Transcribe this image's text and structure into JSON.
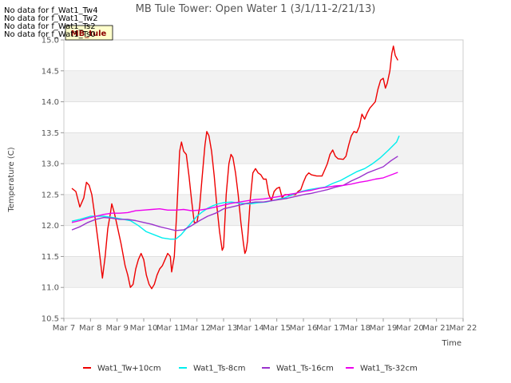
{
  "no_data_messages": [
    "No data for f_Wat1_Tw4",
    "No data for f_Wat1_Tw2",
    "No data for f_Wat1_Ts2",
    "No data for f_Wat1_Ts0"
  ],
  "site_label": "MB_tule",
  "colors": {
    "Wat1_Tw+10cm": "#ee0000",
    "Wat1_Ts-8cm": "#00eeee",
    "Wat1_Ts-16cm": "#9a32cd",
    "Wat1_Ts-32cm": "#ee00ee",
    "band": "#f2f2f2",
    "grid": "#dddddd"
  },
  "chart_data": {
    "type": "line",
    "title": "MB Tule Tower: Open Water 1 (3/1/11-2/21/13)",
    "xlabel": "Time",
    "ylabel": "Temperature (C)",
    "x_tick_labels": [
      "Mar 7",
      "Mar 8",
      "Mar 9",
      "Mar 10",
      "Mar 11",
      "Mar 12",
      "Mar 13",
      "Mar 14",
      "Mar 15",
      "Mar 16",
      "Mar 17",
      "Mar 18",
      "Mar 19",
      "Mar 20",
      "Mar 21",
      "Mar 22"
    ],
    "y_tick_labels": [
      "10.5",
      "11.0",
      "11.5",
      "12.0",
      "12.5",
      "13.0",
      "13.5",
      "14.0",
      "14.5",
      "15.0"
    ],
    "xlim": [
      0,
      15
    ],
    "ylim": [
      10.5,
      15.0
    ],
    "x_units": "days since Mar 7",
    "grid": true,
    "legend_position": "bottom",
    "series": [
      {
        "name": "Wat1_Tw+10cm",
        "points": [
          [
            0.3,
            12.6
          ],
          [
            0.45,
            12.55
          ],
          [
            0.6,
            12.3
          ],
          [
            0.75,
            12.45
          ],
          [
            0.85,
            12.7
          ],
          [
            0.95,
            12.65
          ],
          [
            1.05,
            12.5
          ],
          [
            1.15,
            12.2
          ],
          [
            1.3,
            11.7
          ],
          [
            1.45,
            11.15
          ],
          [
            1.55,
            11.5
          ],
          [
            1.65,
            11.95
          ],
          [
            1.75,
            12.2
          ],
          [
            1.8,
            12.35
          ],
          [
            1.9,
            12.2
          ],
          [
            2.0,
            12.0
          ],
          [
            2.15,
            11.7
          ],
          [
            2.3,
            11.35
          ],
          [
            2.4,
            11.2
          ],
          [
            2.5,
            11.0
          ],
          [
            2.6,
            11.05
          ],
          [
            2.7,
            11.3
          ],
          [
            2.8,
            11.45
          ],
          [
            2.9,
            11.55
          ],
          [
            3.0,
            11.45
          ],
          [
            3.1,
            11.2
          ],
          [
            3.2,
            11.05
          ],
          [
            3.3,
            10.98
          ],
          [
            3.4,
            11.05
          ],
          [
            3.5,
            11.2
          ],
          [
            3.6,
            11.3
          ],
          [
            3.7,
            11.35
          ],
          [
            3.8,
            11.45
          ],
          [
            3.9,
            11.55
          ],
          [
            4.0,
            11.5
          ],
          [
            4.05,
            11.25
          ],
          [
            4.15,
            11.5
          ],
          [
            4.25,
            12.3
          ],
          [
            4.35,
            13.2
          ],
          [
            4.42,
            13.35
          ],
          [
            4.5,
            13.2
          ],
          [
            4.6,
            13.15
          ],
          [
            4.7,
            12.8
          ],
          [
            4.8,
            12.4
          ],
          [
            4.9,
            12.05
          ],
          [
            5.0,
            12.05
          ],
          [
            5.1,
            12.3
          ],
          [
            5.2,
            12.8
          ],
          [
            5.3,
            13.3
          ],
          [
            5.37,
            13.52
          ],
          [
            5.45,
            13.45
          ],
          [
            5.55,
            13.2
          ],
          [
            5.65,
            12.8
          ],
          [
            5.75,
            12.3
          ],
          [
            5.85,
            11.9
          ],
          [
            5.95,
            11.6
          ],
          [
            6.0,
            11.65
          ],
          [
            6.1,
            12.5
          ],
          [
            6.2,
            13.0
          ],
          [
            6.28,
            13.15
          ],
          [
            6.35,
            13.1
          ],
          [
            6.45,
            12.85
          ],
          [
            6.55,
            12.5
          ],
          [
            6.65,
            12.05
          ],
          [
            6.75,
            11.7
          ],
          [
            6.8,
            11.55
          ],
          [
            6.85,
            11.6
          ],
          [
            6.9,
            11.75
          ],
          [
            7.0,
            12.4
          ],
          [
            7.1,
            12.85
          ],
          [
            7.2,
            12.92
          ],
          [
            7.3,
            12.85
          ],
          [
            7.4,
            12.82
          ],
          [
            7.5,
            12.75
          ],
          [
            7.6,
            12.75
          ],
          [
            7.7,
            12.5
          ],
          [
            7.8,
            12.4
          ],
          [
            7.9,
            12.55
          ],
          [
            8.0,
            12.6
          ],
          [
            8.1,
            12.62
          ],
          [
            8.2,
            12.45
          ],
          [
            8.3,
            12.5
          ],
          [
            8.4,
            12.5
          ],
          [
            8.5,
            12.48
          ],
          [
            8.6,
            12.5
          ],
          [
            8.7,
            12.5
          ],
          [
            8.8,
            12.55
          ],
          [
            8.9,
            12.58
          ],
          [
            9.0,
            12.7
          ],
          [
            9.1,
            12.8
          ],
          [
            9.2,
            12.85
          ],
          [
            9.3,
            12.82
          ],
          [
            9.5,
            12.8
          ],
          [
            9.7,
            12.8
          ],
          [
            9.8,
            12.9
          ],
          [
            9.9,
            13.0
          ],
          [
            10.0,
            13.15
          ],
          [
            10.1,
            13.22
          ],
          [
            10.2,
            13.12
          ],
          [
            10.3,
            13.08
          ],
          [
            10.5,
            13.07
          ],
          [
            10.6,
            13.12
          ],
          [
            10.7,
            13.3
          ],
          [
            10.8,
            13.45
          ],
          [
            10.9,
            13.52
          ],
          [
            11.0,
            13.5
          ],
          [
            11.1,
            13.6
          ],
          [
            11.2,
            13.8
          ],
          [
            11.3,
            13.72
          ],
          [
            11.4,
            13.82
          ],
          [
            11.5,
            13.9
          ],
          [
            11.6,
            13.95
          ],
          [
            11.7,
            14.0
          ],
          [
            11.8,
            14.2
          ],
          [
            11.9,
            14.35
          ],
          [
            12.0,
            14.38
          ],
          [
            12.08,
            14.22
          ],
          [
            12.15,
            14.3
          ],
          [
            12.25,
            14.5
          ],
          [
            12.32,
            14.78
          ],
          [
            12.38,
            14.9
          ],
          [
            12.45,
            14.75
          ],
          [
            12.55,
            14.67
          ]
        ]
      },
      {
        "name": "Wat1_Ts-8cm",
        "points": [
          [
            0.3,
            12.07
          ],
          [
            0.6,
            12.1
          ],
          [
            1.0,
            12.15
          ],
          [
            1.5,
            12.15
          ],
          [
            2.0,
            12.12
          ],
          [
            2.5,
            12.08
          ],
          [
            2.8,
            12.0
          ],
          [
            3.1,
            11.9
          ],
          [
            3.4,
            11.85
          ],
          [
            3.7,
            11.8
          ],
          [
            4.0,
            11.78
          ],
          [
            4.2,
            11.78
          ],
          [
            4.4,
            11.85
          ],
          [
            4.6,
            11.95
          ],
          [
            4.8,
            12.05
          ],
          [
            5.0,
            12.15
          ],
          [
            5.2,
            12.22
          ],
          [
            5.4,
            12.28
          ],
          [
            5.6,
            12.32
          ],
          [
            5.8,
            12.35
          ],
          [
            6.0,
            12.37
          ],
          [
            6.3,
            12.38
          ],
          [
            6.6,
            12.36
          ],
          [
            7.0,
            12.35
          ],
          [
            7.3,
            12.37
          ],
          [
            7.6,
            12.38
          ],
          [
            8.0,
            12.42
          ],
          [
            8.3,
            12.45
          ],
          [
            8.6,
            12.5
          ],
          [
            8.9,
            12.55
          ],
          [
            9.2,
            12.58
          ],
          [
            9.5,
            12.6
          ],
          [
            9.8,
            12.62
          ],
          [
            10.1,
            12.68
          ],
          [
            10.4,
            12.73
          ],
          [
            10.7,
            12.8
          ],
          [
            11.0,
            12.87
          ],
          [
            11.3,
            12.92
          ],
          [
            11.6,
            13.0
          ],
          [
            11.9,
            13.1
          ],
          [
            12.2,
            13.22
          ],
          [
            12.5,
            13.35
          ],
          [
            12.6,
            13.45
          ]
        ]
      },
      {
        "name": "Wat1_Ts-16cm",
        "points": [
          [
            0.3,
            11.93
          ],
          [
            0.6,
            11.98
          ],
          [
            0.9,
            12.05
          ],
          [
            1.2,
            12.1
          ],
          [
            1.5,
            12.13
          ],
          [
            1.8,
            12.12
          ],
          [
            2.1,
            12.1
          ],
          [
            2.4,
            12.1
          ],
          [
            2.7,
            12.08
          ],
          [
            3.0,
            12.05
          ],
          [
            3.3,
            12.02
          ],
          [
            3.6,
            11.98
          ],
          [
            3.9,
            11.95
          ],
          [
            4.2,
            11.92
          ],
          [
            4.5,
            11.93
          ],
          [
            4.8,
            12.0
          ],
          [
            5.1,
            12.08
          ],
          [
            5.4,
            12.15
          ],
          [
            5.7,
            12.2
          ],
          [
            6.0,
            12.27
          ],
          [
            6.3,
            12.3
          ],
          [
            6.6,
            12.33
          ],
          [
            6.9,
            12.36
          ],
          [
            7.2,
            12.38
          ],
          [
            7.5,
            12.38
          ],
          [
            7.8,
            12.4
          ],
          [
            8.1,
            12.42
          ],
          [
            8.4,
            12.44
          ],
          [
            8.7,
            12.47
          ],
          [
            9.0,
            12.5
          ],
          [
            9.3,
            12.52
          ],
          [
            9.6,
            12.55
          ],
          [
            9.9,
            12.58
          ],
          [
            10.2,
            12.62
          ],
          [
            10.5,
            12.65
          ],
          [
            10.8,
            12.72
          ],
          [
            11.1,
            12.78
          ],
          [
            11.4,
            12.85
          ],
          [
            11.7,
            12.9
          ],
          [
            12.0,
            12.95
          ],
          [
            12.3,
            13.05
          ],
          [
            12.55,
            13.12
          ]
        ]
      },
      {
        "name": "Wat1_Ts-32cm",
        "points": [
          [
            0.3,
            12.05
          ],
          [
            0.6,
            12.08
          ],
          [
            0.9,
            12.12
          ],
          [
            1.2,
            12.15
          ],
          [
            1.5,
            12.18
          ],
          [
            1.8,
            12.2
          ],
          [
            2.1,
            12.2
          ],
          [
            2.4,
            12.21
          ],
          [
            2.7,
            12.24
          ],
          [
            3.0,
            12.25
          ],
          [
            3.3,
            12.26
          ],
          [
            3.6,
            12.27
          ],
          [
            3.9,
            12.25
          ],
          [
            4.2,
            12.25
          ],
          [
            4.5,
            12.26
          ],
          [
            4.8,
            12.24
          ],
          [
            5.1,
            12.25
          ],
          [
            5.4,
            12.27
          ],
          [
            5.7,
            12.3
          ],
          [
            6.0,
            12.33
          ],
          [
            6.3,
            12.36
          ],
          [
            6.6,
            12.38
          ],
          [
            6.9,
            12.4
          ],
          [
            7.2,
            12.42
          ],
          [
            7.5,
            12.43
          ],
          [
            7.8,
            12.45
          ],
          [
            8.1,
            12.47
          ],
          [
            8.4,
            12.5
          ],
          [
            8.7,
            12.52
          ],
          [
            9.0,
            12.55
          ],
          [
            9.3,
            12.57
          ],
          [
            9.6,
            12.6
          ],
          [
            9.9,
            12.62
          ],
          [
            10.2,
            12.64
          ],
          [
            10.5,
            12.65
          ],
          [
            10.8,
            12.67
          ],
          [
            11.1,
            12.7
          ],
          [
            11.4,
            12.72
          ],
          [
            11.7,
            12.75
          ],
          [
            12.0,
            12.77
          ],
          [
            12.3,
            12.82
          ],
          [
            12.55,
            12.86
          ]
        ]
      }
    ]
  }
}
